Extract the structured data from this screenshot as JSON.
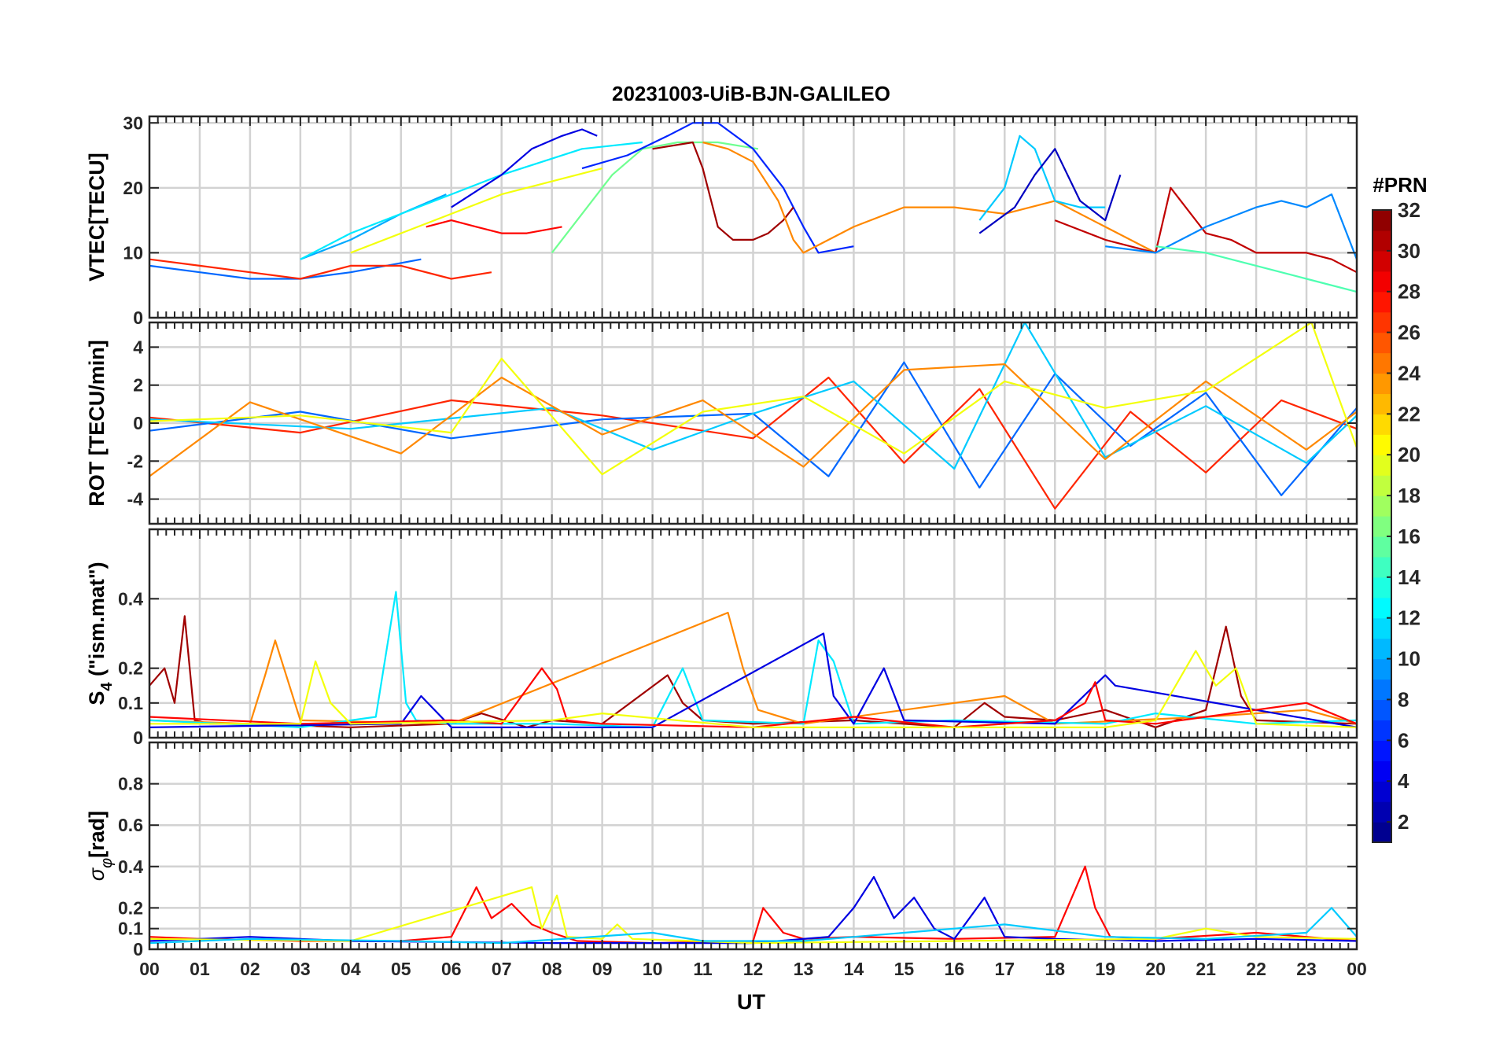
{
  "title": "20231003-UiB-BJN-GALILEO",
  "xlabel": "UT",
  "x_tick_labels": [
    "00",
    "01",
    "02",
    "03",
    "04",
    "05",
    "06",
    "07",
    "08",
    "09",
    "10",
    "11",
    "12",
    "13",
    "14",
    "15",
    "16",
    "17",
    "18",
    "19",
    "20",
    "21",
    "22",
    "23",
    "00"
  ],
  "colorbar": {
    "title": "#PRN",
    "min": 1,
    "max": 32,
    "tick_labels": [
      "2",
      "4",
      "6",
      "8",
      "10",
      "12",
      "14",
      "16",
      "18",
      "20",
      "22",
      "24",
      "26",
      "28",
      "30",
      "32"
    ],
    "colormap": "jet"
  },
  "chart_data": [
    {
      "type": "line",
      "name": "vtec",
      "ylabel": "VTEC[TECU]",
      "ylim": [
        0,
        31
      ],
      "yticks": [
        0,
        10,
        20,
        30
      ],
      "ytick_labels": [
        "0",
        "10",
        "20",
        "30"
      ],
      "xlim": [
        0,
        24
      ],
      "series": [
        {
          "prn": 8,
          "x": [
            0,
            1,
            2,
            3,
            4,
            5.4
          ],
          "y": [
            8,
            7,
            6,
            6,
            7,
            9
          ]
        },
        {
          "prn": 27,
          "x": [
            0,
            1,
            2,
            3,
            4,
            5,
            6,
            6.8
          ],
          "y": [
            9,
            8,
            7,
            6,
            8,
            8,
            6,
            7
          ]
        },
        {
          "prn": 10,
          "x": [
            3,
            4,
            5,
            5.9
          ],
          "y": [
            9,
            12,
            16,
            19
          ]
        },
        {
          "prn": 12,
          "x": [
            3,
            4,
            5,
            6,
            7,
            7.8,
            8.6,
            9.8
          ],
          "y": [
            9,
            13,
            16,
            19,
            22,
            24,
            26,
            27
          ]
        },
        {
          "prn": 20,
          "x": [
            4,
            5,
            6,
            7,
            8,
            9
          ],
          "y": [
            10,
            13,
            16,
            19,
            21,
            23
          ]
        },
        {
          "prn": 28,
          "x": [
            5.5,
            6,
            6.5,
            7,
            7.5,
            8.2
          ],
          "y": [
            14,
            15,
            14,
            13,
            13,
            14
          ]
        },
        {
          "prn": 4,
          "x": [
            6,
            7,
            7.6,
            8.2,
            8.6,
            8.9
          ],
          "y": [
            17,
            22,
            26,
            28,
            29,
            28
          ]
        },
        {
          "prn": 16,
          "x": [
            8,
            8.6,
            9.2,
            9.8,
            10.5,
            11.3,
            12.1
          ],
          "y": [
            10,
            16,
            22,
            26,
            27,
            27,
            26
          ]
        },
        {
          "prn": 6,
          "x": [
            8.6,
            9.5,
            10.3,
            10.8,
            11.3,
            12,
            12.6,
            13,
            13.3,
            14
          ],
          "y": [
            23,
            25,
            28,
            30,
            30,
            26,
            20,
            14,
            10,
            11
          ]
        },
        {
          "prn": 31,
          "x": [
            10,
            10.8,
            11,
            11.3,
            11.6,
            12,
            12.3,
            12.6,
            12.8
          ],
          "y": [
            26,
            27,
            23,
            14,
            12,
            12,
            13,
            15,
            17
          ]
        },
        {
          "prn": 24,
          "x": [
            11,
            11.5,
            12,
            12.5,
            12.8,
            13,
            14,
            15,
            16,
            17,
            18,
            19,
            20
          ],
          "y": [
            27,
            26,
            24,
            18,
            12,
            10,
            14,
            17,
            17,
            16,
            18,
            14,
            10
          ]
        },
        {
          "prn": 11,
          "x": [
            16.5,
            17,
            17.3,
            17.6,
            18,
            18.5,
            19
          ],
          "y": [
            15,
            20,
            28,
            26,
            18,
            17,
            17
          ]
        },
        {
          "prn": 3,
          "x": [
            16.5,
            17.2,
            17.6,
            18,
            18.5,
            19,
            19.3
          ],
          "y": [
            13,
            17,
            22,
            26,
            18,
            15,
            22
          ]
        },
        {
          "prn": 30,
          "x": [
            18,
            19,
            20,
            20.3,
            21,
            21.5,
            22,
            23,
            23.5,
            24
          ],
          "y": [
            15,
            12,
            10,
            20,
            13,
            12,
            10,
            10,
            9,
            7
          ]
        },
        {
          "prn": 9,
          "x": [
            19,
            20,
            21,
            22,
            22.5,
            23,
            23.5,
            24
          ],
          "y": [
            11,
            10,
            14,
            17,
            18,
            17,
            19,
            9
          ]
        },
        {
          "prn": 15,
          "x": [
            20,
            21,
            22,
            23,
            24
          ],
          "y": [
            11,
            10,
            8,
            6,
            4
          ]
        }
      ]
    },
    {
      "type": "line",
      "name": "rot",
      "ylabel": "ROT [TECU/min]",
      "ylim": [
        -5.3,
        5.3
      ],
      "yticks": [
        -4,
        -2,
        0,
        2,
        4
      ],
      "ytick_labels": [
        "-4",
        "-2",
        "0",
        "2",
        "4"
      ],
      "xlim": [
        0,
        24
      ],
      "series": [
        {
          "prn": 27,
          "x": [
            0,
            3,
            6,
            9,
            12,
            13.5,
            15,
            16.5,
            18,
            19.5,
            21,
            22.5,
            24
          ],
          "y": [
            0.3,
            -0.5,
            1.2,
            0.4,
            -0.8,
            2.4,
            -2.1,
            1.8,
            -4.5,
            0.6,
            -2.6,
            1.2,
            -0.3
          ]
        },
        {
          "prn": 8,
          "x": [
            0,
            3,
            6,
            9,
            12,
            13.5,
            15,
            16.5,
            18,
            19.5,
            21,
            22.5,
            24
          ],
          "y": [
            -0.4,
            0.6,
            -0.8,
            0.2,
            0.5,
            -2.8,
            3.2,
            -3.4,
            2.6,
            -1.2,
            1.6,
            -3.8,
            0.8
          ]
        },
        {
          "prn": 11,
          "x": [
            0,
            4,
            8,
            10,
            12,
            14,
            16,
            17.4,
            19,
            21,
            23,
            24
          ],
          "y": [
            0.2,
            -0.3,
            0.8,
            -1.4,
            0.5,
            2.2,
            -2.4,
            5.3,
            -1.8,
            0.9,
            -2.1,
            0.4
          ]
        },
        {
          "prn": 24,
          "x": [
            0,
            2,
            5,
            7,
            9,
            11,
            13,
            15,
            17,
            19,
            21,
            23,
            24
          ],
          "y": [
            -2.8,
            1.1,
            -1.6,
            2.4,
            -0.6,
            1.2,
            -2.3,
            2.8,
            3.1,
            -1.9,
            2.2,
            -1.4,
            0.6
          ]
        },
        {
          "prn": 20,
          "x": [
            0,
            3,
            6,
            7,
            9,
            11,
            13,
            15,
            17,
            19,
            21,
            23.1,
            24
          ],
          "y": [
            0.1,
            0.4,
            -0.5,
            3.4,
            -2.7,
            0.6,
            1.4,
            -1.6,
            2.2,
            0.8,
            1.7,
            5.3,
            -1.3
          ]
        }
      ]
    },
    {
      "type": "line",
      "name": "s4",
      "ylabel": "S4 (\"ism.mat\")",
      "ylabel_main": "S",
      "ylabel_sub": "4",
      "ylabel_rest": " (\"ism.mat\")",
      "ylim": [
        0,
        0.6
      ],
      "yticks": [
        0,
        0.1,
        0.2,
        0.4
      ],
      "ytick_labels": [
        "0",
        "0.1",
        "0.2",
        "0.4"
      ],
      "xlim": [
        0,
        24
      ],
      "series": [
        {
          "prn": 31,
          "x": [
            0,
            0.3,
            0.5,
            0.7,
            0.9,
            1.2,
            2,
            4,
            6,
            6.6,
            7.5,
            8,
            9,
            10.3,
            10.6,
            11,
            12,
            14,
            16,
            16.6,
            17,
            18,
            19,
            20,
            21,
            21.4,
            21.7,
            22,
            24
          ],
          "y": [
            0.15,
            0.2,
            0.1,
            0.35,
            0.05,
            0.04,
            0.04,
            0.03,
            0.04,
            0.07,
            0.03,
            0.05,
            0.04,
            0.18,
            0.1,
            0.05,
            0.04,
            0.05,
            0.03,
            0.1,
            0.06,
            0.05,
            0.08,
            0.03,
            0.08,
            0.32,
            0.12,
            0.05,
            0.04
          ]
        },
        {
          "prn": 24,
          "x": [
            0,
            2,
            2.3,
            2.5,
            3,
            6,
            11.5,
            11.8,
            12.1,
            13,
            15,
            17,
            18,
            21,
            23,
            24
          ],
          "y": [
            0.05,
            0.04,
            0.18,
            0.28,
            0.05,
            0.04,
            0.36,
            0.2,
            0.08,
            0.04,
            0.08,
            0.12,
            0.04,
            0.06,
            0.08,
            0.04
          ]
        },
        {
          "prn": 12,
          "x": [
            0,
            3,
            4.5,
            4.9,
            5.1,
            5.3,
            6,
            7,
            8,
            10,
            10.6,
            11,
            13,
            13.3,
            13.6,
            14,
            16,
            19,
            20,
            22,
            24
          ],
          "y": [
            0.05,
            0.03,
            0.06,
            0.42,
            0.1,
            0.05,
            0.04,
            0.04,
            0.04,
            0.03,
            0.2,
            0.05,
            0.04,
            0.28,
            0.22,
            0.04,
            0.05,
            0.04,
            0.07,
            0.04,
            0.05
          ]
        },
        {
          "prn": 4,
          "x": [
            0,
            5,
            5.4,
            6,
            10,
            13.4,
            13.6,
            14,
            14.6,
            15,
            18,
            19,
            19.2,
            24
          ],
          "y": [
            0.03,
            0.04,
            0.12,
            0.03,
            0.03,
            0.3,
            0.12,
            0.04,
            0.2,
            0.05,
            0.04,
            0.18,
            0.15,
            0.03
          ]
        },
        {
          "prn": 28,
          "x": [
            0,
            3,
            6,
            7,
            7.8,
            8.1,
            8.3,
            9,
            12,
            14,
            16,
            18,
            18.6,
            18.8,
            19,
            20,
            23,
            24
          ],
          "y": [
            0.06,
            0.04,
            0.05,
            0.04,
            0.2,
            0.14,
            0.05,
            0.04,
            0.03,
            0.06,
            0.03,
            0.05,
            0.1,
            0.16,
            0.05,
            0.04,
            0.1,
            0.04
          ]
        },
        {
          "prn": 20,
          "x": [
            0,
            3,
            3.3,
            3.6,
            4,
            8,
            9,
            12,
            16,
            19,
            20,
            20.8,
            21.2,
            21.6,
            22,
            24
          ],
          "y": [
            0.04,
            0.04,
            0.22,
            0.1,
            0.04,
            0.05,
            0.07,
            0.03,
            0.03,
            0.03,
            0.05,
            0.25,
            0.15,
            0.2,
            0.04,
            0.03
          ]
        }
      ]
    },
    {
      "type": "line",
      "name": "sigma_phi",
      "ylabel": "σφ[rad]",
      "ylabel_main": "σ",
      "ylabel_sub": "φ",
      "ylabel_rest": "[rad]",
      "ylim": [
        0,
        1
      ],
      "yticks": [
        0,
        0.1,
        0.2,
        0.4,
        0.6,
        0.8
      ],
      "ytick_labels": [
        "0",
        "0.1",
        "0.2",
        "0.4",
        "0.6",
        "0.8"
      ],
      "xlim": [
        0,
        24
      ],
      "series": [
        {
          "prn": 28,
          "x": [
            0,
            1,
            3,
            5,
            6,
            6.5,
            6.8,
            7.2,
            7.6,
            8,
            8.5,
            10,
            12,
            12.2,
            12.6,
            13,
            14,
            16,
            18,
            18.6,
            18.8,
            19.1,
            20,
            22,
            24
          ],
          "y": [
            0.06,
            0.05,
            0.04,
            0.04,
            0.06,
            0.3,
            0.15,
            0.22,
            0.12,
            0.08,
            0.04,
            0.03,
            0.04,
            0.2,
            0.08,
            0.05,
            0.06,
            0.05,
            0.06,
            0.4,
            0.2,
            0.06,
            0.05,
            0.08,
            0.04
          ]
        },
        {
          "prn": 4,
          "x": [
            0,
            2,
            4,
            8,
            12,
            13.5,
            14,
            14.4,
            14.8,
            15.2,
            15.6,
            16,
            16.6,
            17,
            18,
            20,
            22,
            24
          ],
          "y": [
            0.04,
            0.06,
            0.04,
            0.03,
            0.03,
            0.06,
            0.2,
            0.35,
            0.15,
            0.25,
            0.1,
            0.05,
            0.25,
            0.06,
            0.05,
            0.04,
            0.05,
            0.04
          ]
        },
        {
          "prn": 20,
          "x": [
            0,
            4,
            7.6,
            7.8,
            8.1,
            8.3,
            9,
            9.3,
            9.6,
            12,
            16,
            20,
            21,
            22,
            24
          ],
          "y": [
            0.05,
            0.04,
            0.3,
            0.1,
            0.26,
            0.06,
            0.05,
            0.12,
            0.05,
            0.03,
            0.04,
            0.05,
            0.1,
            0.06,
            0.05
          ]
        },
        {
          "prn": 11,
          "x": [
            0,
            2,
            5,
            7,
            10,
            11,
            13,
            15,
            17,
            19,
            21,
            23,
            23.5,
            24
          ],
          "y": [
            0.03,
            0.05,
            0.04,
            0.03,
            0.08,
            0.04,
            0.04,
            0.08,
            0.12,
            0.06,
            0.05,
            0.08,
            0.2,
            0.06
          ]
        }
      ]
    }
  ]
}
